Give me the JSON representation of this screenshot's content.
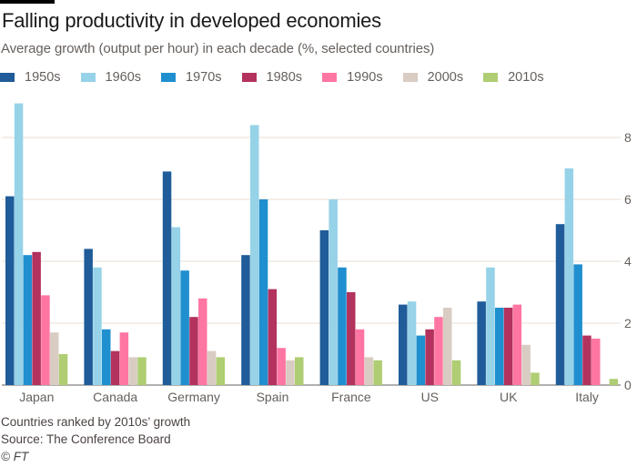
{
  "chart_data": {
    "type": "bar",
    "title": "Falling productivity in developed economies",
    "subtitle": "Average growth (output per hour) in each decade (%, selected countries)",
    "xlabel": "",
    "ylabel": "",
    "ylim": [
      0,
      9.5
    ],
    "yticks": [
      0,
      2,
      4,
      6,
      8
    ],
    "grid": true,
    "y_axis_side": "right",
    "legend_position": "top-left",
    "categories": [
      "Japan",
      "Canada",
      "Germany",
      "Spain",
      "France",
      "US",
      "UK",
      "Italy"
    ],
    "series": [
      {
        "name": "1950s",
        "color": "#1f5c99",
        "values": [
          6.1,
          4.4,
          6.9,
          4.2,
          5.0,
          2.6,
          2.7,
          5.2
        ]
      },
      {
        "name": "1960s",
        "color": "#96d2e8",
        "values": [
          9.1,
          3.8,
          5.1,
          8.4,
          6.0,
          2.7,
          3.8,
          7.0
        ]
      },
      {
        "name": "1970s",
        "color": "#1f8fcf",
        "values": [
          4.2,
          1.8,
          3.7,
          6.0,
          3.8,
          1.6,
          2.5,
          3.9
        ]
      },
      {
        "name": "1980s",
        "color": "#b3325e",
        "values": [
          4.3,
          1.1,
          2.2,
          3.1,
          3.0,
          1.8,
          2.5,
          1.6
        ]
      },
      {
        "name": "1990s",
        "color": "#ff76a2",
        "values": [
          2.9,
          1.7,
          2.8,
          1.2,
          1.8,
          2.2,
          2.6,
          1.5
        ]
      },
      {
        "name": "2000s",
        "color": "#d9ccc3",
        "values": [
          1.7,
          0.9,
          1.1,
          0.8,
          0.9,
          2.5,
          1.3,
          0.0
        ]
      },
      {
        "name": "2010s",
        "color": "#afcd72",
        "values": [
          1.0,
          0.9,
          0.9,
          0.9,
          0.8,
          0.8,
          0.4,
          0.2
        ]
      }
    ],
    "notes": [
      "Countries ranked by 2010s' growth",
      "Source: The Conference Board",
      "© FT"
    ]
  },
  "footer": {
    "note": "Countries ranked by 2010s’ growth",
    "source": "Source: The Conference Board",
    "copyright": "© FT"
  }
}
